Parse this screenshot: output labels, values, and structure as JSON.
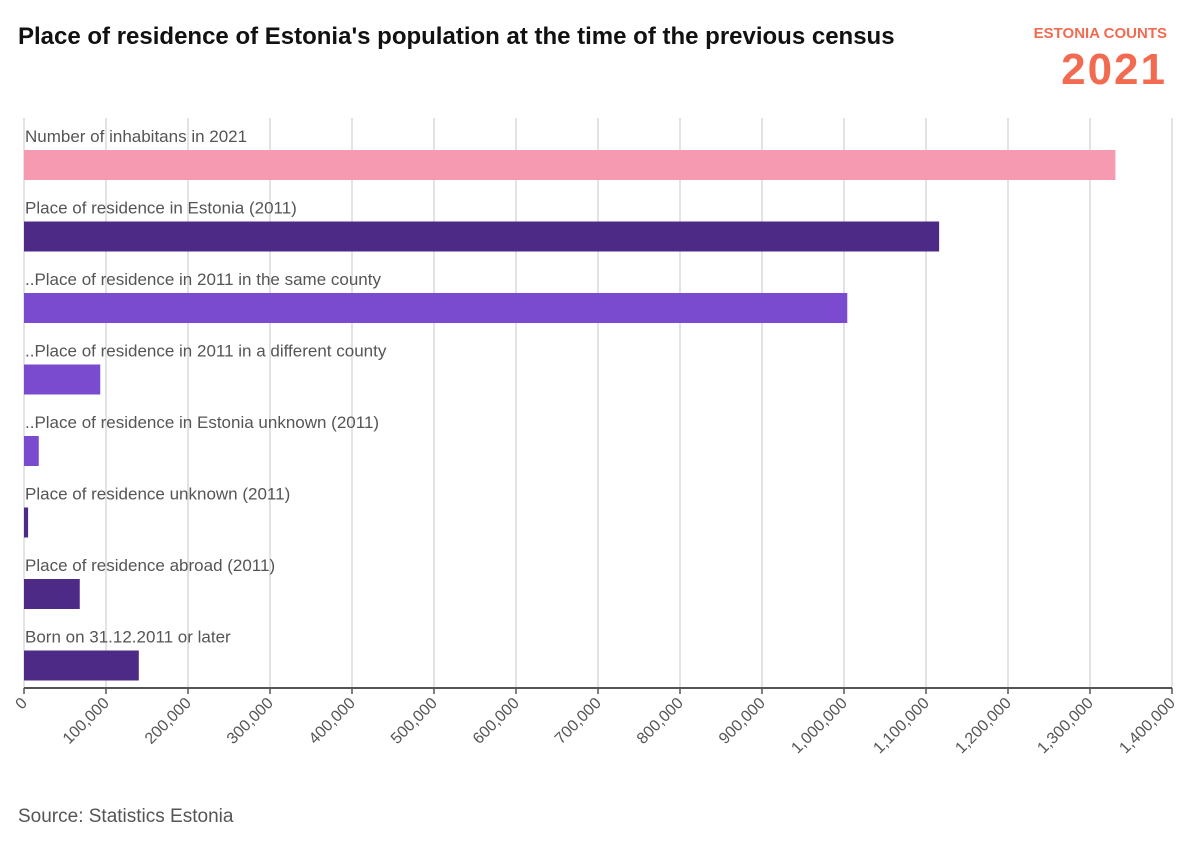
{
  "chart_data": {
    "type": "barh",
    "title": "Place of residence of Estonia's population at the time of the previous census",
    "logo_top": "ESTONIA COUNTS",
    "logo_bottom": "2021",
    "source": "Source: Statistics Estonia",
    "categories": [
      "Number of inhabitans in 2021",
      "Place of residence in Estonia (2011)",
      "..Place of residence in 2011 in the same county",
      "..Place of residence in 2011 in a different county",
      "..Place of residence in Estonia unknown (2011)",
      "Place of residence unknown (2011)",
      "Place of residence abroad (2011)",
      "Born on 31.12.2011 or later"
    ],
    "values": [
      1331000,
      1116000,
      1004000,
      93000,
      18000,
      5000,
      68000,
      140000
    ],
    "colors": [
      "#f59ab0",
      "#4c2a86",
      "#7a4bcf",
      "#7a4bcf",
      "#7a4bcf",
      "#4c2a86",
      "#4c2a86",
      "#4c2a86"
    ],
    "xlim": [
      0,
      1400000
    ],
    "xticks": [
      0,
      {
        "value": 100000,
        "label": "100,000"
      },
      {
        "value": 200000,
        "label": "200,000"
      },
      {
        "value": 300000,
        "label": "300,000"
      },
      {
        "value": 400000,
        "label": "400,000"
      },
      {
        "value": 500000,
        "label": "500,000"
      },
      {
        "value": 600000,
        "label": "600,000"
      },
      {
        "value": 700000,
        "label": "700,000"
      },
      {
        "value": 800000,
        "label": "800,000"
      },
      {
        "value": 900000,
        "label": "900,000"
      },
      {
        "value": 1000000,
        "label": "1,000,000"
      },
      {
        "value": 1100000,
        "label": "1,100,000"
      },
      {
        "value": 1200000,
        "label": "1,200,000"
      },
      {
        "value": 1300000,
        "label": "1,300,000"
      },
      {
        "value": 1400000,
        "label": "1,400,000"
      }
    ],
    "grid": true
  }
}
